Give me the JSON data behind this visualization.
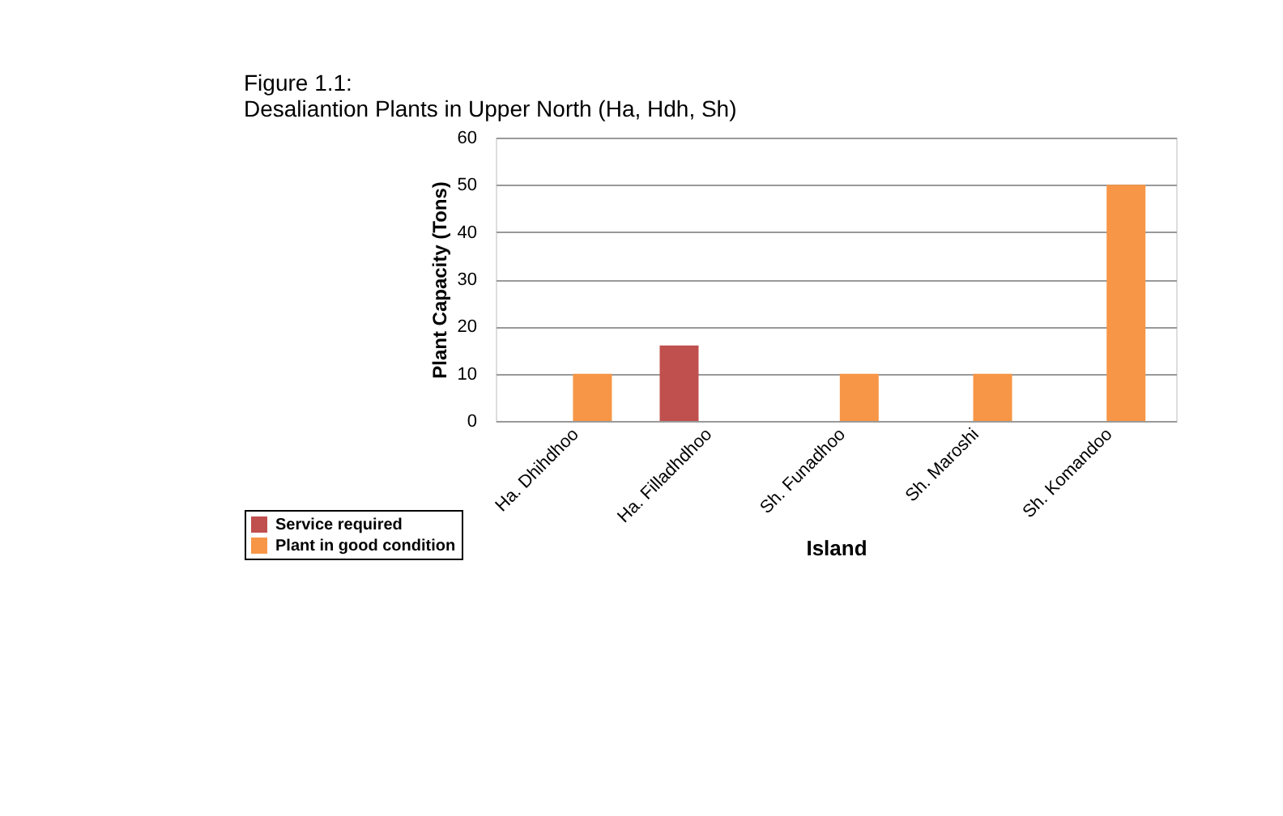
{
  "chart_data": {
    "type": "bar",
    "title": [
      "Figure 1.1:",
      "Desaliantion Plants in Upper North (Ha, Hdh, Sh)"
    ],
    "xlabel": "Island",
    "ylabel": "Plant Capacity (Tons)",
    "categories": [
      "Ha. Dhihdhoo",
      "Ha. Filladhdhoo",
      "Sh. Funadhoo",
      "Sh. Maroshi",
      "Sh. Komandoo"
    ],
    "series": [
      {
        "name": "Service required",
        "color": "#c0504d",
        "values": [
          null,
          16,
          null,
          null,
          null
        ]
      },
      {
        "name": "Plant in good condition",
        "color": "#f79646",
        "values": [
          10,
          null,
          10,
          10,
          50
        ]
      }
    ],
    "ylim": [
      0,
      60
    ],
    "yticks": [
      0,
      10,
      20,
      30,
      40,
      50,
      60
    ],
    "grid": "y",
    "legend": "bottom left"
  }
}
